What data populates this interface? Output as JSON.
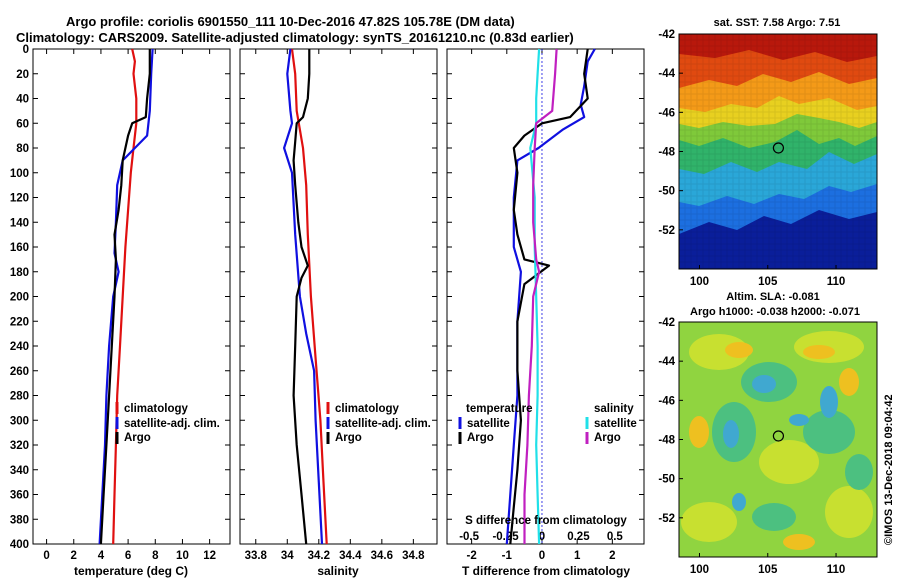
{
  "titles": {
    "line1": "Argo profile: coriolis 6901550_111 10-Dec-2016 47.82S 105.78E (DM data)",
    "line2": "Climatology: CARS2009. Satellite-adjusted climatology: synTS_20161210.nc (0.83d earlier)"
  },
  "colors": {
    "climatology": "#e01010",
    "satellite": "#1010e0",
    "argo": "#000000",
    "salinity_satellite": "#20e0e8",
    "salinity_argo": "#c020c0"
  },
  "depth_ticks": [
    0,
    20,
    40,
    60,
    80,
    100,
    120,
    140,
    160,
    180,
    200,
    220,
    240,
    260,
    280,
    300,
    320,
    340,
    360,
    380,
    400
  ],
  "chart_data": [
    {
      "type": "line",
      "name": "temperature",
      "xlabel": "temperature (deg C)",
      "ylabel": "depth",
      "xlim": [
        -1,
        13.5
      ],
      "ylim": [
        400,
        0
      ],
      "xticks": [
        "0",
        "2",
        "4",
        "6",
        "8",
        "10",
        "12"
      ],
      "xtick_values": [
        0,
        2,
        4,
        6,
        8,
        10,
        12
      ],
      "legend": [
        "climatology",
        "satellite-adj. clim.",
        "Argo"
      ],
      "series": [
        {
          "name": "climatology",
          "color": "#e01010",
          "points": [
            [
              6.3,
              0
            ],
            [
              6.5,
              10
            ],
            [
              6.4,
              20
            ],
            [
              6.6,
              40
            ],
            [
              6.6,
              60
            ],
            [
              6.4,
              80
            ],
            [
              6.2,
              100
            ],
            [
              6.0,
              130
            ],
            [
              5.8,
              160
            ],
            [
              5.6,
              200
            ],
            [
              5.4,
              240
            ],
            [
              5.2,
              280
            ],
            [
              5.1,
              320
            ],
            [
              5.0,
              360
            ],
            [
              4.9,
              400
            ]
          ]
        },
        {
          "name": "satellite-adj. clim.",
          "color": "#1010e0",
          "points": [
            [
              7.8,
              0
            ],
            [
              7.7,
              20
            ],
            [
              7.6,
              50
            ],
            [
              7.4,
              70
            ],
            [
              6.5,
              80
            ],
            [
              5.6,
              90
            ],
            [
              5.2,
              110
            ],
            [
              5.1,
              140
            ],
            [
              5.0,
              165
            ],
            [
              5.3,
              180
            ],
            [
              4.9,
              200
            ],
            [
              4.6,
              240
            ],
            [
              4.4,
              280
            ],
            [
              4.3,
              320
            ],
            [
              4.1,
              360
            ],
            [
              3.9,
              400
            ]
          ]
        },
        {
          "name": "Argo",
          "color": "#000000",
          "points": [
            [
              7.6,
              0
            ],
            [
              7.6,
              20
            ],
            [
              7.4,
              40
            ],
            [
              7.3,
              55
            ],
            [
              6.3,
              60
            ],
            [
              6.0,
              70
            ],
            [
              5.6,
              90
            ],
            [
              5.5,
              110
            ],
            [
              5.3,
              130
            ],
            [
              5.0,
              150
            ],
            [
              5.1,
              170
            ],
            [
              5.0,
              200
            ],
            [
              4.8,
              240
            ],
            [
              4.6,
              280
            ],
            [
              4.4,
              320
            ],
            [
              4.2,
              360
            ],
            [
              4.0,
              400
            ]
          ]
        }
      ]
    },
    {
      "type": "line",
      "name": "salinity",
      "xlabel": "salinity",
      "ylabel": "depth",
      "xlim": [
        33.7,
        34.95
      ],
      "ylim": [
        400,
        0
      ],
      "xticks": [
        "33.8",
        "34",
        "34.2",
        "34.4",
        "34.6",
        "34.8"
      ],
      "xtick_values": [
        33.8,
        34.0,
        34.2,
        34.4,
        34.6,
        34.8
      ],
      "legend": [
        "climatology",
        "satellite-adj. clim.",
        "Argo"
      ],
      "series": [
        {
          "name": "climatology",
          "color": "#e01010",
          "points": [
            [
              34.03,
              0
            ],
            [
              34.05,
              20
            ],
            [
              34.06,
              50
            ],
            [
              34.1,
              80
            ],
            [
              34.12,
              110
            ],
            [
              34.13,
              150
            ],
            [
              34.15,
              200
            ],
            [
              34.18,
              250
            ],
            [
              34.21,
              300
            ],
            [
              34.23,
              350
            ],
            [
              34.25,
              400
            ]
          ]
        },
        {
          "name": "satellite-adj. clim.",
          "color": "#1010e0",
          "points": [
            [
              34.02,
              0
            ],
            [
              34.0,
              20
            ],
            [
              34.02,
              50
            ],
            [
              34.03,
              60
            ],
            [
              33.98,
              80
            ],
            [
              34.03,
              100
            ],
            [
              34.05,
              150
            ],
            [
              34.08,
              200
            ],
            [
              34.12,
              230
            ],
            [
              34.17,
              260
            ],
            [
              34.18,
              300
            ],
            [
              34.2,
              350
            ],
            [
              34.22,
              400
            ]
          ]
        },
        {
          "name": "Argo",
          "color": "#000000",
          "points": [
            [
              34.14,
              0
            ],
            [
              34.14,
              20
            ],
            [
              34.13,
              40
            ],
            [
              34.1,
              55
            ],
            [
              34.06,
              60
            ],
            [
              34.05,
              75
            ],
            [
              34.04,
              90
            ],
            [
              34.05,
              110
            ],
            [
              34.07,
              140
            ],
            [
              34.09,
              160
            ],
            [
              34.13,
              175
            ],
            [
              34.09,
              185
            ],
            [
              34.06,
              200
            ],
            [
              34.05,
              240
            ],
            [
              34.04,
              280
            ],
            [
              34.06,
              320
            ],
            [
              34.09,
              360
            ],
            [
              34.12,
              400
            ]
          ]
        }
      ]
    },
    {
      "type": "line",
      "name": "differences",
      "xlabel": "T difference from climatology",
      "ylabel": "depth",
      "xlim": [
        -2.7,
        2.9
      ],
      "ylim": [
        400,
        0
      ],
      "xticks": [
        "-2",
        "-1",
        "0",
        "1",
        "2"
      ],
      "xtick_values": [
        -2,
        -1,
        0,
        1,
        2
      ],
      "top_axis_label": "S difference from climatology",
      "top_xticks": [
        "-0.5",
        "-0.25",
        "0",
        "0.25",
        "0.5"
      ],
      "top_xtick_values": [
        -0.5,
        -0.25,
        0,
        0.25,
        0.5
      ],
      "legend_temperature": {
        "header": "temperature",
        "items": [
          "satellite",
          "Argo"
        ]
      },
      "legend_salinity": {
        "header": "salinity",
        "items": [
          "satellite",
          "Argo"
        ]
      },
      "series": [
        {
          "name": "T satellite",
          "color": "#1010e0",
          "points": [
            [
              1.5,
              0
            ],
            [
              1.3,
              10
            ],
            [
              1.2,
              30
            ],
            [
              1.1,
              45
            ],
            [
              1.2,
              55
            ],
            [
              0.6,
              65
            ],
            [
              -0.1,
              80
            ],
            [
              -0.7,
              90
            ],
            [
              -0.8,
              120
            ],
            [
              -0.8,
              160
            ],
            [
              -0.6,
              180
            ],
            [
              -0.7,
              220
            ],
            [
              -0.7,
              280
            ],
            [
              -0.8,
              320
            ],
            [
              -0.9,
              360
            ],
            [
              -1.0,
              400
            ]
          ]
        },
        {
          "name": "T Argo",
          "color": "#000000",
          "points": [
            [
              1.3,
              0
            ],
            [
              1.2,
              20
            ],
            [
              1.3,
              40
            ],
            [
              0.8,
              55
            ],
            [
              0.0,
              60
            ],
            [
              -0.5,
              70
            ],
            [
              -0.8,
              80
            ],
            [
              -0.7,
              100
            ],
            [
              -0.8,
              130
            ],
            [
              -0.7,
              150
            ],
            [
              -0.5,
              170
            ],
            [
              0.2,
              175
            ],
            [
              -0.5,
              190
            ],
            [
              -0.7,
              220
            ],
            [
              -0.7,
              260
            ],
            [
              -0.6,
              300
            ],
            [
              -0.7,
              340
            ],
            [
              -0.8,
              370
            ],
            [
              -0.9,
              400
            ]
          ]
        },
        {
          "name": "S satellite",
          "color": "#20e0e8",
          "points": [
            [
              -0.02,
              0
            ],
            [
              -0.03,
              20
            ],
            [
              -0.04,
              40
            ],
            [
              -0.04,
              60
            ],
            [
              -0.08,
              80
            ],
            [
              -0.05,
              120
            ],
            [
              -0.05,
              160
            ],
            [
              -0.04,
              200
            ],
            [
              -0.03,
              240
            ],
            [
              -0.03,
              280
            ],
            [
              -0.04,
              320
            ],
            [
              -0.03,
              360
            ],
            [
              -0.02,
              400
            ]
          ]
        },
        {
          "name": "S Argo",
          "color": "#c020c0",
          "points": [
            [
              0.1,
              0
            ],
            [
              0.09,
              20
            ],
            [
              0.07,
              50
            ],
            [
              -0.04,
              60
            ],
            [
              -0.05,
              80
            ],
            [
              -0.06,
              110
            ],
            [
              -0.06,
              140
            ],
            [
              -0.04,
              170
            ],
            [
              -0.02,
              180
            ],
            [
              -0.06,
              200
            ],
            [
              -0.07,
              240
            ],
            [
              -0.09,
              280
            ],
            [
              -0.1,
              320
            ],
            [
              -0.12,
              360
            ],
            [
              -0.12,
              400
            ]
          ]
        }
      ]
    },
    {
      "type": "heatmap",
      "name": "sst-map",
      "title": "sat. SST: 7.58 Argo: 7.51",
      "xlim": [
        98.5,
        113
      ],
      "ylim": [
        -54,
        -42
      ],
      "xticks": [
        "100",
        "105",
        "110"
      ],
      "xtick_values": [
        100,
        105,
        110
      ],
      "yticks": [
        "-42",
        "-44",
        "-46",
        "-48",
        "-50",
        "-52"
      ],
      "ytick_values": [
        -42,
        -44,
        -46,
        -48,
        -50,
        -52
      ],
      "marker": [
        105.78,
        -47.82
      ]
    },
    {
      "type": "heatmap",
      "name": "sla-map",
      "title_line1": "Altim. SLA: -0.081",
      "title_line2": "Argo h1000: -0.038 h2000: -0.071",
      "xlim": [
        98.5,
        113
      ],
      "ylim": [
        -54,
        -42
      ],
      "xticks": [
        "100",
        "105",
        "110"
      ],
      "xtick_values": [
        100,
        105,
        110
      ],
      "yticks": [
        "-42",
        "-44",
        "-46",
        "-48",
        "-50",
        "-52"
      ],
      "ytick_values": [
        -42,
        -44,
        -46,
        -48,
        -50,
        -52
      ],
      "marker": [
        105.78,
        -47.82
      ]
    }
  ],
  "side_note": "©IMOS 13-Dec-2018 09:04:42"
}
